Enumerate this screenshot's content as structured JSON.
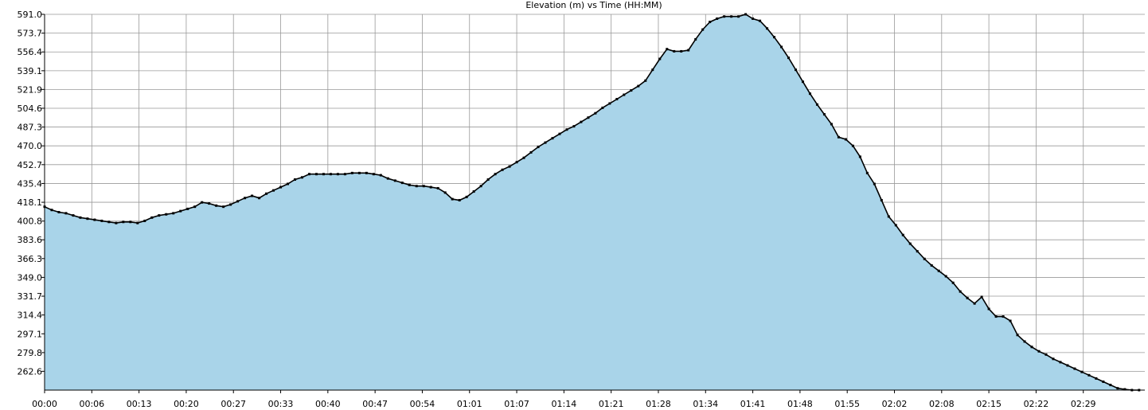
{
  "chart_data": {
    "type": "area",
    "title": "Elevation (m) vs Time (HH:MM)",
    "xlabel": "",
    "ylabel": "",
    "xlim": [
      0,
      153.8
    ],
    "ylim": [
      245.3,
      591.0
    ],
    "grid": true,
    "legend": "none",
    "fill_color": "#a9d4e9",
    "line_color": "#000000",
    "x_tick_labels": [
      "00:00",
      "00:06",
      "00:13",
      "00:20",
      "00:27",
      "00:33",
      "00:40",
      "00:47",
      "00:54",
      "01:01",
      "01:07",
      "01:14",
      "01:21",
      "01:28",
      "01:34",
      "01:41",
      "01:48",
      "01:55",
      "02:02",
      "02:08",
      "02:15",
      "02:22",
      "02:29"
    ],
    "x_ticks": [
      0,
      6.6,
      13.2,
      19.8,
      26.4,
      33.0,
      39.6,
      46.2,
      52.8,
      59.4,
      66.0,
      72.6,
      79.2,
      85.8,
      92.4,
      99.0,
      105.6,
      112.2,
      118.8,
      125.4,
      132.0,
      138.6,
      145.2
    ],
    "y_tick_labels": [
      "591.0",
      "573.7",
      "556.4",
      "539.1",
      "521.9",
      "504.6",
      "487.3",
      "470.0",
      "452.7",
      "435.4",
      "418.1",
      "400.8",
      "383.6",
      "366.3",
      "349.0",
      "331.7",
      "314.4",
      "297.1",
      "279.8",
      "262.6"
    ],
    "y_ticks": [
      591.0,
      573.7,
      556.4,
      539.1,
      521.9,
      504.6,
      487.3,
      470.0,
      452.7,
      435.4,
      418.1,
      400.8,
      383.6,
      366.3,
      349.0,
      331.7,
      314.4,
      297.1,
      279.8,
      262.6
    ],
    "series": [
      {
        "x": [
          0,
          1,
          2,
          3,
          4,
          5,
          6,
          7,
          8,
          9,
          10,
          11,
          12,
          13,
          14,
          15,
          16,
          17,
          18,
          19,
          20,
          21,
          22,
          23,
          24,
          25,
          26,
          27,
          28,
          29,
          30,
          31,
          32,
          33,
          34,
          35,
          36,
          37,
          38,
          39,
          40,
          41,
          42,
          43,
          44,
          45,
          46,
          47,
          48,
          49,
          50,
          51,
          52,
          53,
          54,
          55,
          56,
          57,
          58,
          59,
          60,
          61,
          62,
          63,
          64,
          65,
          66,
          67,
          68,
          69,
          70,
          71,
          72,
          73,
          74,
          75,
          76,
          77,
          78,
          79,
          80,
          81,
          82,
          83,
          84,
          85,
          86,
          87,
          88,
          89,
          90,
          91,
          92,
          93,
          94,
          95,
          96,
          97,
          98,
          99,
          100,
          101,
          102,
          103,
          104,
          105,
          106,
          107,
          108,
          109,
          110,
          111,
          112,
          113,
          114,
          115,
          116,
          117,
          118,
          119,
          120,
          121,
          122,
          123,
          124,
          125,
          126,
          127,
          128,
          129,
          130,
          131,
          132,
          133,
          134,
          135,
          136,
          137,
          138,
          139,
          140,
          141,
          142,
          143,
          144,
          145,
          146,
          147,
          148,
          149,
          150,
          151,
          152,
          153
        ],
        "y": [
          414,
          411,
          409,
          408,
          406,
          404,
          403,
          402,
          401,
          400,
          399,
          400,
          400,
          399,
          401,
          404,
          406,
          407,
          408,
          410,
          412,
          414,
          418,
          417,
          415,
          414,
          416,
          419,
          422,
          424,
          422,
          426,
          429,
          432,
          435,
          439,
          441,
          444,
          444,
          444,
          444,
          444,
          444,
          445,
          445,
          445,
          444,
          443,
          440,
          438,
          436,
          434,
          433,
          433,
          432,
          431,
          427,
          421,
          420,
          423,
          428,
          433,
          439,
          444,
          448,
          451,
          455,
          459,
          464,
          469,
          473,
          477,
          481,
          485,
          488,
          492,
          496,
          500,
          505,
          509,
          513,
          517,
          521,
          525,
          530,
          540,
          550,
          559,
          557,
          557,
          558,
          568,
          577,
          584,
          587,
          589,
          589,
          589,
          591,
          587,
          585,
          578,
          570,
          561,
          551,
          540,
          529,
          518,
          508,
          499,
          490,
          478,
          476,
          470,
          460,
          445,
          435,
          420,
          405,
          397,
          388,
          380,
          373,
          366,
          360,
          355,
          350,
          344,
          336,
          330,
          325,
          331,
          320,
          313,
          313,
          309,
          296,
          290,
          285,
          281,
          278,
          274,
          271,
          268,
          265,
          262,
          259,
          256,
          253,
          250,
          247,
          246,
          245.3,
          244
        ]
      }
    ]
  }
}
